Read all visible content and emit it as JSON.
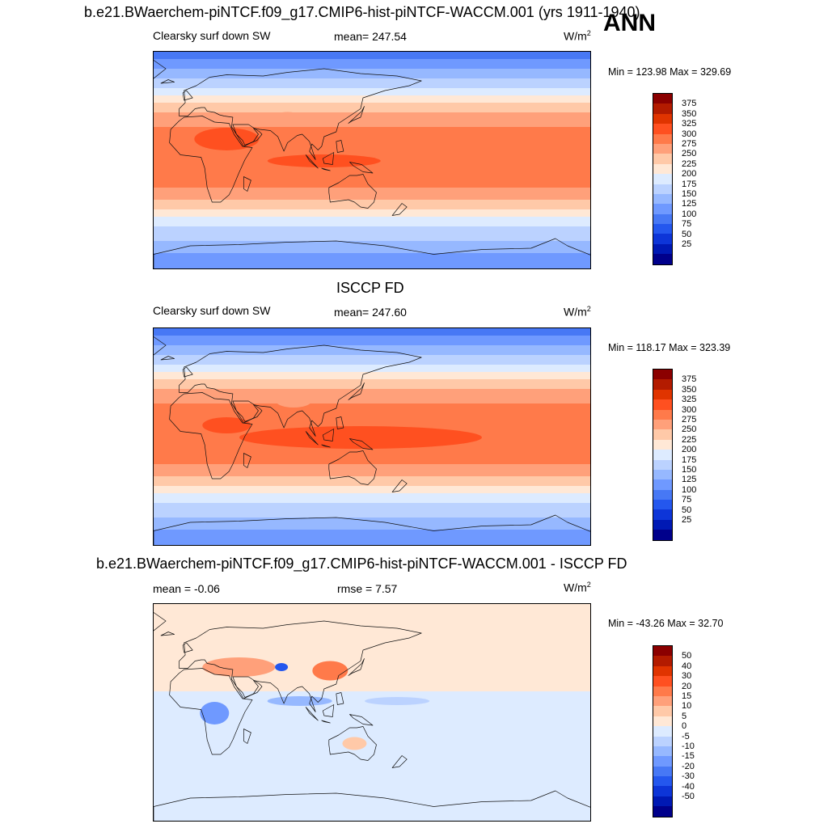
{
  "header": {
    "title": "b.e21.BWaerchem-piNTCF.f09_g17.CMIP6-hist-piNTCF-WACCM.001 (yrs 1911-1940)",
    "season": "ANN"
  },
  "panels": [
    {
      "title": "",
      "left_label": "Clearsky surf down SW",
      "center_label": "mean= 247.54",
      "units_base": "W/m",
      "units_exp": "2",
      "minmax": "Min = 123.98 Max = 329.69",
      "legend": {
        "colors": [
          "#8B0000",
          "#B31B00",
          "#E03400",
          "#FF5020",
          "#FF7A4A",
          "#FFA07A",
          "#FFC9A8",
          "#FFE8D6",
          "#DDEBFF",
          "#BBD2FF",
          "#96B8FF",
          "#6F99FF",
          "#4778F5",
          "#2457EE",
          "#0D35D8",
          "#0019B4",
          "#00008B"
        ],
        "labels": [
          "375",
          "350",
          "325",
          "300",
          "275",
          "250",
          "225",
          "200",
          "175",
          "150",
          "125",
          "100",
          "75",
          "50",
          "25"
        ]
      },
      "map_field": "model"
    },
    {
      "title": "ISCCP FD",
      "left_label": "Clearsky surf down SW",
      "center_label": "mean= 247.60",
      "units_base": "W/m",
      "units_exp": "2",
      "minmax": "Min = 118.17 Max = 323.39",
      "legend": {
        "colors": [
          "#8B0000",
          "#B31B00",
          "#E03400",
          "#FF5020",
          "#FF7A4A",
          "#FFA07A",
          "#FFC9A8",
          "#FFE8D6",
          "#DDEBFF",
          "#BBD2FF",
          "#96B8FF",
          "#6F99FF",
          "#4778F5",
          "#2457EE",
          "#0D35D8",
          "#0019B4",
          "#00008B"
        ],
        "labels": [
          "375",
          "350",
          "325",
          "300",
          "275",
          "250",
          "225",
          "200",
          "175",
          "150",
          "125",
          "100",
          "75",
          "50",
          "25"
        ]
      },
      "map_field": "obs"
    },
    {
      "title": "b.e21.BWaerchem-piNTCF.f09_g17.CMIP6-hist-piNTCF-WACCM.001 - ISCCP FD",
      "left_label": "mean =  -0.06",
      "center_label": "rmse =   7.57",
      "units_base": "W/m",
      "units_exp": "2",
      "minmax": "Min = -43.26 Max =  32.70",
      "legend": {
        "colors": [
          "#8B0000",
          "#B31B00",
          "#E03400",
          "#FF5020",
          "#FF7A4A",
          "#FFA07A",
          "#FFC9A8",
          "#FFE8D6",
          "#DDEBFF",
          "#BBD2FF",
          "#96B8FF",
          "#6F99FF",
          "#4778F5",
          "#2457EE",
          "#0D35D8",
          "#0019B4",
          "#00008B"
        ],
        "labels": [
          "50",
          "40",
          "30",
          "20",
          "15",
          "10",
          "5",
          "0",
          "-5",
          "-10",
          "-15",
          "-20",
          "-30",
          "-40",
          "-50"
        ]
      },
      "map_field": "diff"
    }
  ]
}
